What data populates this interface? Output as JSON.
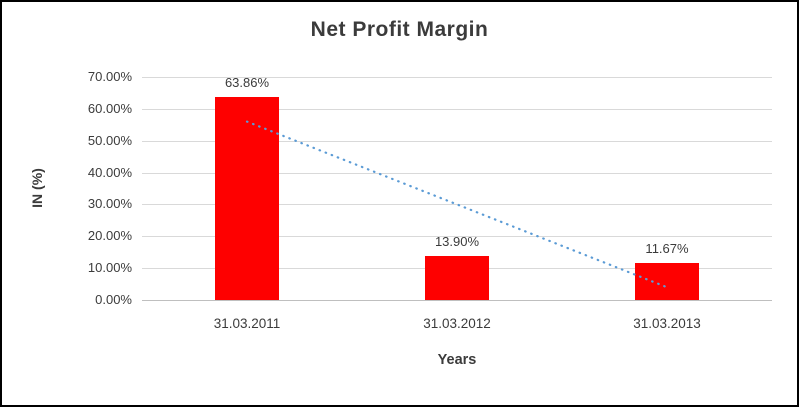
{
  "chart_data": {
    "type": "bar",
    "title": "Net Profit Margin",
    "categories": [
      "31.03.2011",
      "31.03.2012",
      "31.03.2013"
    ],
    "values": [
      63.86,
      13.9,
      11.67
    ],
    "data_labels": [
      "63.86%",
      "13.90%",
      "11.67%"
    ],
    "xlabel": "Years",
    "ylabel": "IN (%)",
    "ylim": [
      0,
      70
    ],
    "y_ticks": [
      "0.00%",
      "10.00%",
      "20.00%",
      "30.00%",
      "40.00%",
      "50.00%",
      "60.00%",
      "70.00%"
    ],
    "grid": "horizontal",
    "legend": "none",
    "bar_color": "#fe0000",
    "trendline": {
      "style": "dotted",
      "color": "#5b9bd5",
      "start_value": 56,
      "end_value": 4
    }
  }
}
